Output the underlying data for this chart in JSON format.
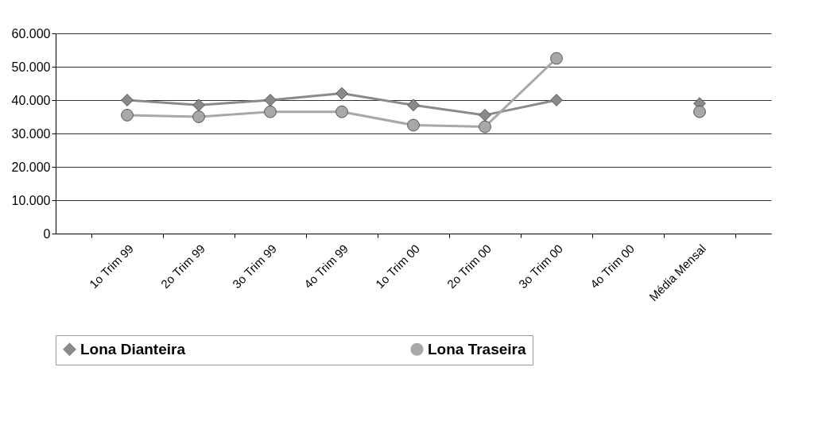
{
  "chart_data": {
    "type": "line",
    "categories": [
      "1o Trim 99",
      "2o Trim 99",
      "3o Trim 99",
      "4o Trim 99",
      "1o Trim 00",
      "2o Trim 00",
      "3o Trim 00",
      "4o Trim 00",
      "Média Mensal"
    ],
    "series": [
      {
        "name": "Lona Dianteira",
        "color": "#8a8a8a",
        "marker": "diamond",
        "values": [
          40000,
          38500,
          40000,
          42000,
          38500,
          35500,
          40000,
          null,
          39000
        ]
      },
      {
        "name": "Lona Traseira",
        "color": "#a8a8a8",
        "marker": "circle",
        "values": [
          35500,
          35000,
          36500,
          36500,
          32500,
          32000,
          52500,
          null,
          36500
        ]
      }
    ],
    "ylim": [
      0,
      60000
    ],
    "yticks": [
      {
        "value": 0,
        "label": "0"
      },
      {
        "value": 10000,
        "label": "10.000"
      },
      {
        "value": 20000,
        "label": "20.000"
      },
      {
        "value": 30000,
        "label": "30.000"
      },
      {
        "value": 40000,
        "label": "40.000"
      },
      {
        "value": 50000,
        "label": "50.000"
      },
      {
        "value": 60000,
        "label": "60.000"
      }
    ],
    "grid": "y",
    "legend": "bottom"
  }
}
